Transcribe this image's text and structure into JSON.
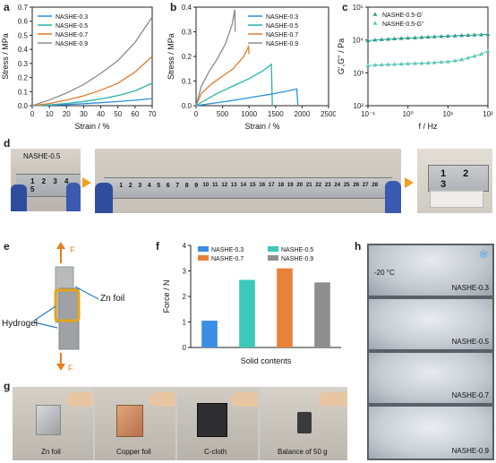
{
  "panels": {
    "a": "a",
    "b": "b",
    "c": "c",
    "d": "d",
    "e": "e",
    "f": "f",
    "g": "g",
    "h": "h"
  },
  "colors": {
    "s03": "#2f8fd8",
    "s05": "#2bb3a8",
    "s07": "#e07a2c",
    "s09": "#8a8a8a",
    "c_gp": "#2a9d8f",
    "c_gpp": "#5cc6b8",
    "bar03": "#3a8ee6",
    "bar05": "#3cc9b8",
    "bar07": "#e8813a",
    "bar09": "#8e8e8e",
    "arrow": "#f0a020",
    "force": "#e67e22",
    "hydro_line": "#2a7cc7"
  },
  "chart_data": [
    {
      "id": "a",
      "type": "line",
      "xlabel": "Strain / %",
      "ylabel": "Stress / MPa",
      "xlim": [
        0,
        70
      ],
      "ylim": [
        0,
        0.7
      ],
      "xticks": [
        "0",
        "10",
        "20",
        "30",
        "40",
        "50",
        "60",
        "70"
      ],
      "yticks": [
        "0.0",
        "0.1",
        "0.2",
        "0.3",
        "0.4",
        "0.5",
        "0.6",
        "0.7"
      ],
      "series": [
        {
          "name": "NASHE-0.3",
          "color_key": "s03",
          "x": [
            0,
            10,
            20,
            30,
            40,
            50,
            60,
            70
          ],
          "y": [
            0,
            0.003,
            0.008,
            0.014,
            0.021,
            0.029,
            0.039,
            0.05
          ]
        },
        {
          "name": "NASHE-0.5",
          "color_key": "s05",
          "x": [
            0,
            10,
            20,
            30,
            40,
            50,
            60,
            70
          ],
          "y": [
            0,
            0.006,
            0.016,
            0.03,
            0.048,
            0.072,
            0.105,
            0.16
          ]
        },
        {
          "name": "NASHE-0.7",
          "color_key": "s07",
          "x": [
            0,
            10,
            20,
            30,
            40,
            50,
            60,
            70
          ],
          "y": [
            0,
            0.015,
            0.04,
            0.07,
            0.11,
            0.16,
            0.24,
            0.35
          ]
        },
        {
          "name": "NASHE-0.9",
          "color_key": "s09",
          "x": [
            0,
            10,
            20,
            30,
            40,
            50,
            60,
            70
          ],
          "y": [
            0,
            0.04,
            0.09,
            0.15,
            0.23,
            0.32,
            0.45,
            0.63
          ]
        }
      ]
    },
    {
      "id": "b",
      "type": "line",
      "xlabel": "Strain / %",
      "ylabel": "Stress / MPa",
      "xlim": [
        0,
        2500
      ],
      "ylim": [
        0,
        0.4
      ],
      "xticks": [
        "0",
        "500",
        "1000",
        "1500",
        "2000",
        "2500"
      ],
      "yticks": [
        "0.0",
        "0.1",
        "0.2",
        "0.3",
        "0.4"
      ],
      "series": [
        {
          "name": "NASHE-0.3",
          "color_key": "s03",
          "x": [
            0,
            200,
            500,
            800,
            1100,
            1400,
            1700,
            1900,
            1920
          ],
          "y": [
            0,
            0.006,
            0.015,
            0.025,
            0.036,
            0.046,
            0.058,
            0.068,
            0
          ]
        },
        {
          "name": "NASHE-0.5",
          "color_key": "s05",
          "x": [
            0,
            150,
            400,
            700,
            1000,
            1250,
            1420,
            1440
          ],
          "y": [
            0,
            0.02,
            0.05,
            0.08,
            0.11,
            0.14,
            0.168,
            0
          ]
        },
        {
          "name": "NASHE-0.7",
          "color_key": "s07",
          "x": [
            0,
            100,
            300,
            500,
            700,
            900,
            990,
            1000
          ],
          "y": [
            0,
            0.05,
            0.09,
            0.12,
            0.15,
            0.2,
            0.24,
            0.21
          ]
        },
        {
          "name": "NASHE-0.9",
          "color_key": "s09",
          "x": [
            0,
            100,
            250,
            400,
            550,
            680,
            730,
            740
          ],
          "y": [
            0,
            0.08,
            0.14,
            0.19,
            0.25,
            0.33,
            0.39,
            0.3
          ]
        }
      ]
    },
    {
      "id": "c",
      "type": "scatter",
      "xlabel": "f / Hz",
      "ylabel": "G',G'' / Pa",
      "xscale": "log",
      "yscale": "log",
      "xlim": [
        0.1,
        100
      ],
      "ylim": [
        100,
        200000
      ],
      "xticks": [
        "10⁻¹",
        "10⁰",
        "10¹",
        "10²"
      ],
      "yticks": [
        "10²",
        "10³",
        "10⁴",
        "10⁵"
      ],
      "series": [
        {
          "name": "NASHE-0.5-G'",
          "color_key": "c_gp",
          "x": [
            0.1,
            0.15,
            0.22,
            0.32,
            0.46,
            0.68,
            1,
            1.5,
            2.2,
            3.2,
            4.6,
            6.8,
            10,
            15,
            22,
            32,
            46,
            68,
            100
          ],
          "y": [
            15000,
            16000,
            16500,
            17000,
            17500,
            18000,
            18500,
            19000,
            19500,
            20000,
            20500,
            21000,
            21500,
            22000,
            22500,
            23000,
            23500,
            24000,
            24500
          ]
        },
        {
          "name": "NASHE-0.5-G''",
          "color_key": "c_gpp",
          "x": [
            0.1,
            0.15,
            0.22,
            0.32,
            0.46,
            0.68,
            1,
            1.5,
            2.2,
            3.2,
            4.6,
            6.8,
            10,
            15,
            22,
            32,
            46,
            68,
            100
          ],
          "y": [
            2200,
            2300,
            2350,
            2400,
            2450,
            2500,
            2550,
            2600,
            2650,
            2700,
            2800,
            2900,
            3000,
            3200,
            3500,
            4000,
            4600,
            5400,
            6800
          ]
        }
      ]
    },
    {
      "id": "f",
      "type": "bar",
      "xlabel": "Solid contents",
      "ylabel": "Force / N",
      "ylim": [
        0,
        4
      ],
      "yticks": [
        "0",
        "1",
        "2",
        "3",
        "4"
      ],
      "categories": [
        "NASHE-0.3",
        "NASHE-0.5",
        "NASHE-0.7",
        "NASHE-0.9"
      ],
      "values": [
        1.05,
        2.65,
        3.1,
        2.55
      ],
      "color_keys": [
        "bar03",
        "bar05",
        "bar07",
        "bar09"
      ]
    }
  ],
  "d": {
    "label": "NASHE-0.5",
    "ruler_numbers": [
      "1",
      "2",
      "3",
      "4",
      "5",
      "6",
      "7",
      "8",
      "9",
      "10",
      "11",
      "12",
      "13",
      "14",
      "15",
      "16",
      "17",
      "18",
      "19",
      "20",
      "21",
      "22",
      "23",
      "24",
      "25",
      "26",
      "27",
      "28"
    ],
    "right_numbers": [
      "1",
      "2",
      "3"
    ]
  },
  "e": {
    "force_top": "F",
    "force_bottom": "F",
    "zn_foil": "Zn foil",
    "hydrogel": "Hydrogel"
  },
  "g": {
    "labels": [
      "Zn foil",
      "Copper foil",
      "C-cloth",
      "Balance of 50 g"
    ]
  },
  "h": {
    "temperature": "-20 °C",
    "labels": [
      "NASHE-0.3",
      "NASHE-0.5",
      "NASHE-0.7",
      "NASHE-0.9"
    ]
  }
}
